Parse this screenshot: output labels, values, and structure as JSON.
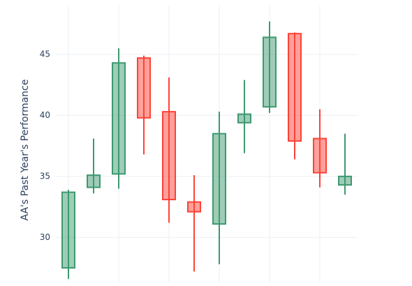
{
  "chart_data": {
    "type": "candlestick",
    "y_axis_label": "AA's Past Year's Performance",
    "categories": [
      null,
      null,
      null,
      null,
      null,
      null,
      null,
      null,
      null,
      null,
      null,
      null
    ],
    "open": [
      27.5,
      34.1,
      35.2,
      44.7,
      40.3,
      32.9,
      31.1,
      39.4,
      40.7,
      46.7,
      38.1,
      34.3
    ],
    "high": [
      33.9,
      38.1,
      45.5,
      44.9,
      43.1,
      35.1,
      40.3,
      42.9,
      47.7,
      46.8,
      40.5,
      38.5
    ],
    "low": [
      26.6,
      33.6,
      34.0,
      36.8,
      31.2,
      27.2,
      27.8,
      36.9,
      40.2,
      36.4,
      34.1,
      33.5
    ],
    "close": [
      33.7,
      35.1,
      44.3,
      39.8,
      33.1,
      32.1,
      38.5,
      40.1,
      46.4,
      37.9,
      35.3,
      35.0
    ],
    "increasing_color": "#3d9970",
    "decreasing_color": "#ff4136",
    "ylim": [
      26.3,
      49
    ],
    "yticks": [
      30,
      35,
      40,
      45
    ],
    "grid": true
  }
}
